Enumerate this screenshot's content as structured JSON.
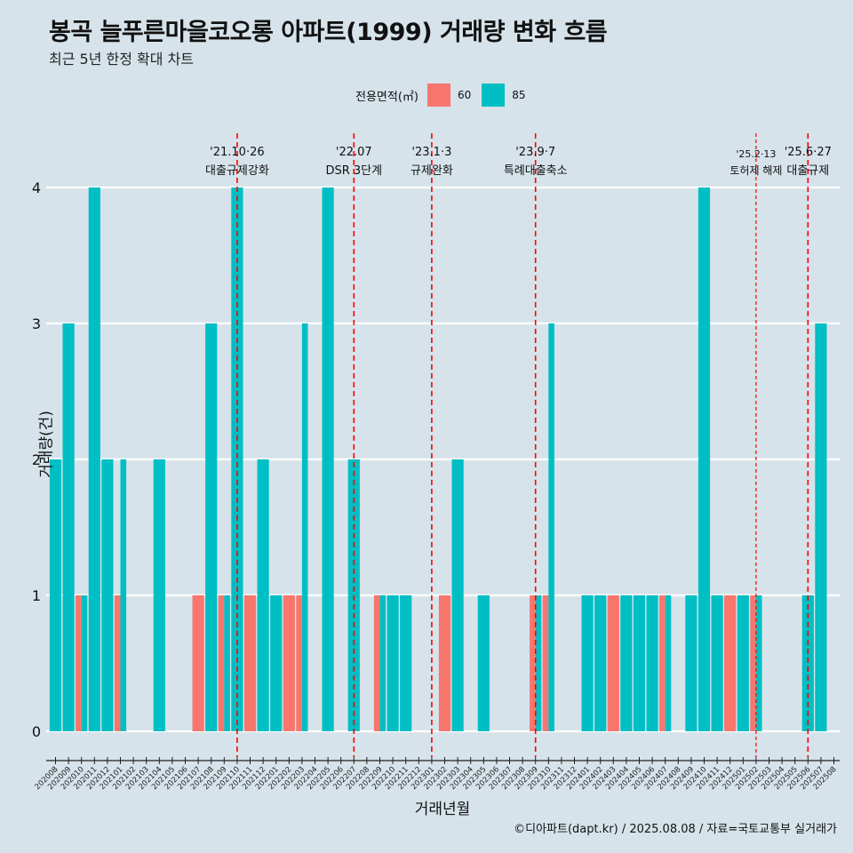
{
  "title": "봉곡 늘푸른마을코오롱 아파트(1999) 거래량 변화 흐름",
  "subtitle": "최근 5년 한정 확대 차트",
  "caption": "©디아파트(dapt.kr) / 2025.08.08 / 자료=국토교통부 실거래가",
  "legend": {
    "title": "전용면적(㎡)",
    "items": [
      {
        "label": "60",
        "color": "#f8766d"
      },
      {
        "label": "85",
        "color": "#00bfc4"
      }
    ]
  },
  "chart_data": {
    "type": "bar",
    "xlabel": "거래년월",
    "ylabel": "거래량(건)",
    "ylim": [
      0,
      4
    ],
    "yticks": [
      0,
      1,
      2,
      3,
      4
    ],
    "categories": [
      "202008",
      "202009",
      "202010",
      "202011",
      "202012",
      "202101",
      "202102",
      "202103",
      "202104",
      "202105",
      "202106",
      "202107",
      "202108",
      "202109",
      "202110",
      "202111",
      "202112",
      "202201",
      "202202",
      "202203",
      "202204",
      "202205",
      "202206",
      "202207",
      "202208",
      "202209",
      "202210",
      "202211",
      "202212",
      "202301",
      "202302",
      "202303",
      "202304",
      "202305",
      "202306",
      "202307",
      "202308",
      "202309",
      "202310",
      "202311",
      "202312",
      "202401",
      "202402",
      "202403",
      "202404",
      "202405",
      "202406",
      "202407",
      "202408",
      "202409",
      "202410",
      "202411",
      "202412",
      "202501",
      "202502",
      "202503",
      "202504",
      "202505",
      "202506",
      "202507",
      "202508"
    ],
    "series": [
      {
        "name": "60",
        "color": "#f8766d",
        "values": [
          0,
          0,
          1,
          0,
          0,
          1,
          0,
          0,
          0,
          0,
          0,
          1,
          0,
          1,
          0,
          1,
          0,
          0,
          1,
          1,
          0,
          0,
          0,
          0,
          0,
          1,
          0,
          0,
          0,
          0,
          1,
          0,
          0,
          0,
          0,
          0,
          0,
          1,
          1,
          0,
          0,
          0,
          0,
          1,
          0,
          0,
          0,
          1,
          0,
          0,
          0,
          0,
          1,
          0,
          1,
          0,
          0,
          0,
          0,
          0,
          0
        ]
      },
      {
        "name": "85",
        "color": "#00bfc4",
        "values": [
          2,
          3,
          1,
          4,
          2,
          2,
          0,
          0,
          2,
          0,
          0,
          0,
          3,
          1,
          4,
          0,
          2,
          1,
          0,
          3,
          0,
          4,
          0,
          2,
          0,
          1,
          1,
          1,
          0,
          0,
          0,
          2,
          0,
          1,
          0,
          0,
          0,
          1,
          3,
          0,
          0,
          1,
          1,
          0,
          1,
          1,
          1,
          1,
          0,
          1,
          4,
          1,
          0,
          1,
          1,
          0,
          0,
          0,
          1,
          3,
          0
        ]
      }
    ],
    "events": [
      {
        "label1": "'21.10·26",
        "label2": "대출규제강화",
        "at": "202110",
        "style": "dashed"
      },
      {
        "label1": "'22.07",
        "label2": "DSR 3단계",
        "at": "202207",
        "style": "dashed"
      },
      {
        "label1": "'23.1·3",
        "label2": "규제완화",
        "at": "202301",
        "style": "dashed"
      },
      {
        "label1": "'23.9·7",
        "label2": "특례대출축소",
        "at": "202309",
        "style": "dashed"
      },
      {
        "label1": "'25.2·13",
        "label2": "토허제 해제",
        "at": "202502",
        "style": "dotted"
      },
      {
        "label1": "'25.6·27",
        "label2": "대출규제",
        "at": "202506",
        "style": "dashed"
      }
    ]
  }
}
